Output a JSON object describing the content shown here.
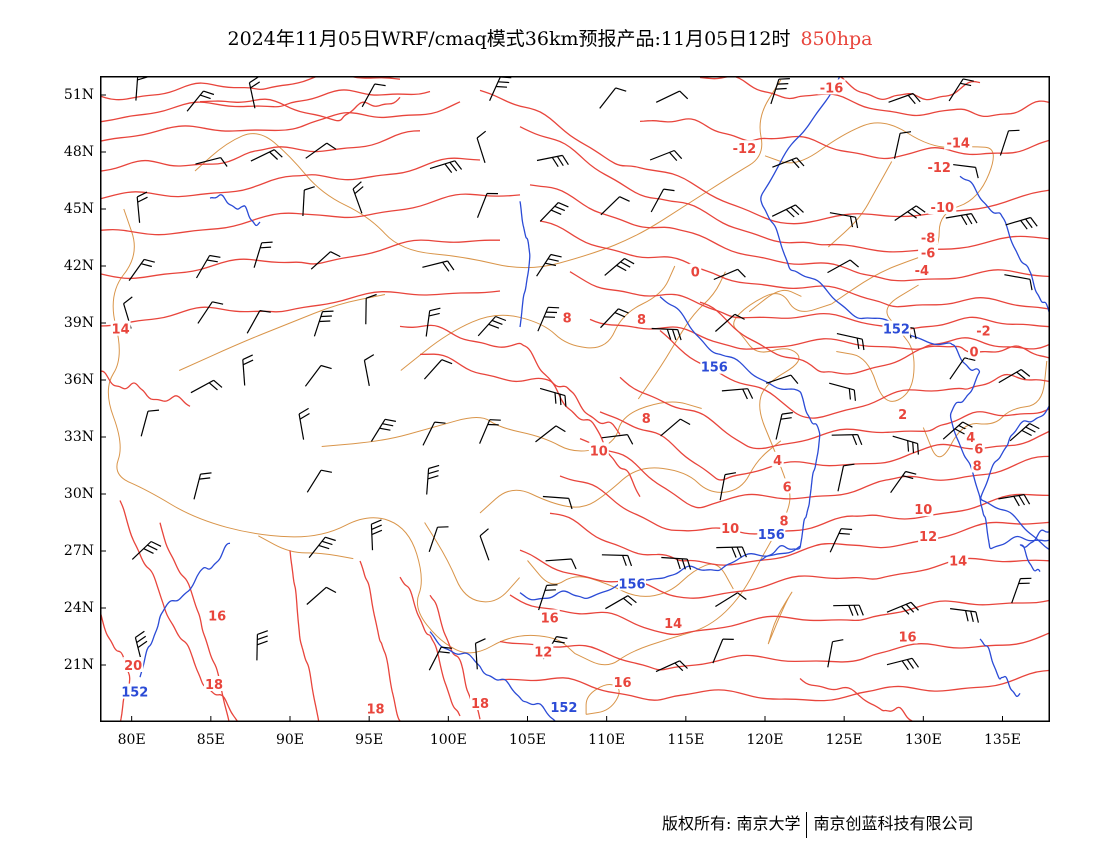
{
  "title": {
    "main": "2024年11月05日WRF/cmaq模式36km预报产品:11月05日12时",
    "level": "850hpa"
  },
  "colors": {
    "temperature": "#e8453c",
    "geopotential": "#2b4bd6",
    "border": "#d9954a",
    "wind": "#000000"
  },
  "axes": {
    "lat_labels": [
      "51N",
      "48N",
      "45N",
      "42N",
      "39N",
      "36N",
      "33N",
      "30N",
      "27N",
      "24N",
      "21N"
    ],
    "lon_labels": [
      "80E",
      "85E",
      "90E",
      "95E",
      "100E",
      "105E",
      "110E",
      "115E",
      "120E",
      "125E",
      "130E",
      "135E"
    ]
  },
  "map": {
    "lon_range": [
      78,
      138
    ],
    "lat_range": [
      18,
      52
    ],
    "temperature_labels": [
      {
        "text": "-16",
        "lon": 124.2,
        "lat": 51.4
      },
      {
        "text": "-12",
        "lon": 118.7,
        "lat": 48.2
      },
      {
        "text": "-14",
        "lon": 132.2,
        "lat": 48.5
      },
      {
        "text": "-12",
        "lon": 131,
        "lat": 47.2
      },
      {
        "text": "-10",
        "lon": 131.2,
        "lat": 45.1
      },
      {
        "text": "-8",
        "lon": 130.3,
        "lat": 43.5
      },
      {
        "text": "-6",
        "lon": 130.3,
        "lat": 42.7
      },
      {
        "text": "-4",
        "lon": 129.9,
        "lat": 41.8
      },
      {
        "text": "0",
        "lon": 115.6,
        "lat": 41.7
      },
      {
        "text": "-2",
        "lon": 133.8,
        "lat": 38.6
      },
      {
        "text": "0",
        "lon": 133.2,
        "lat": 37.5
      },
      {
        "text": "8",
        "lon": 107.5,
        "lat": 39.3
      },
      {
        "text": "8",
        "lon": 112.2,
        "lat": 39.2
      },
      {
        "text": "2",
        "lon": 128.7,
        "lat": 34.2
      },
      {
        "text": "4",
        "lon": 133,
        "lat": 33
      },
      {
        "text": "6",
        "lon": 133.5,
        "lat": 32.4
      },
      {
        "text": "8",
        "lon": 133.4,
        "lat": 31.5
      },
      {
        "text": "8",
        "lon": 112.5,
        "lat": 34
      },
      {
        "text": "10",
        "lon": 109.5,
        "lat": 32.3
      },
      {
        "text": "4",
        "lon": 120.8,
        "lat": 31.8
      },
      {
        "text": "6",
        "lon": 121.4,
        "lat": 30.4
      },
      {
        "text": "8",
        "lon": 121.2,
        "lat": 28.6
      },
      {
        "text": "10",
        "lon": 117.8,
        "lat": 28.2
      },
      {
        "text": "10",
        "lon": 130,
        "lat": 29.2
      },
      {
        "text": "12",
        "lon": 130.3,
        "lat": 27.8
      },
      {
        "text": "14",
        "lon": 132.2,
        "lat": 26.5
      },
      {
        "text": "16",
        "lon": 106.4,
        "lat": 23.5
      },
      {
        "text": "14",
        "lon": 114.2,
        "lat": 23.2
      },
      {
        "text": "12",
        "lon": 106,
        "lat": 21.7
      },
      {
        "text": "16",
        "lon": 129,
        "lat": 22.5
      },
      {
        "text": "16",
        "lon": 85.4,
        "lat": 23.6
      },
      {
        "text": "20",
        "lon": 80.1,
        "lat": 21
      },
      {
        "text": "18",
        "lon": 85.2,
        "lat": 20
      },
      {
        "text": "18",
        "lon": 95.4,
        "lat": 18.7
      },
      {
        "text": "18",
        "lon": 102,
        "lat": 19
      },
      {
        "text": "16",
        "lon": 111,
        "lat": 20.1
      },
      {
        "text": "14",
        "lon": 79.3,
        "lat": 38.7
      }
    ],
    "geopotential_labels": [
      {
        "text": "152",
        "lon": 128.3,
        "lat": 38.7
      },
      {
        "text": "156",
        "lon": 116.8,
        "lat": 36.7
      },
      {
        "text": "156",
        "lon": 120.4,
        "lat": 27.9
      },
      {
        "text": "156",
        "lon": 111.6,
        "lat": 25.3
      },
      {
        "text": "152",
        "lon": 80.2,
        "lat": 19.6
      },
      {
        "text": "152",
        "lon": 107.3,
        "lat": 18.8
      }
    ]
  },
  "footer": {
    "left": "版权所有: 南京大学",
    "right": "南京创蓝科技有限公司"
  }
}
